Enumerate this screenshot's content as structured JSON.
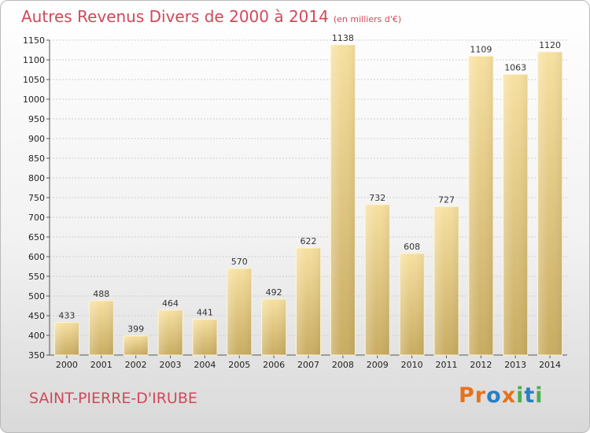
{
  "title": "Autres Revenus Divers de 2000 à 2014",
  "subtitle": "(en milliers d'€)",
  "location": "SAINT-PIERRE-D'IRUBE",
  "logo": {
    "letters": [
      "P",
      "r",
      "o",
      "x",
      "i",
      "t",
      "i"
    ],
    "colors": [
      "#e8711c",
      "#e8711c",
      "#2a7fc1",
      "#e8711c",
      "#4caf50",
      "#2a7fc1",
      "#4caf50"
    ]
  },
  "chart_data": {
    "type": "bar",
    "title": "Autres Revenus Divers de 2000 à 2014",
    "subtitle": "(en milliers d'€)",
    "xlabel": "",
    "ylabel": "",
    "categories": [
      "2000",
      "2001",
      "2002",
      "2003",
      "2004",
      "2005",
      "2006",
      "2007",
      "2008",
      "2009",
      "2010",
      "2011",
      "2012",
      "2013",
      "2014"
    ],
    "values": [
      433,
      488,
      399,
      464,
      441,
      570,
      492,
      622,
      1138,
      732,
      608,
      727,
      1109,
      1063,
      1120
    ],
    "ylim": [
      350,
      1150
    ],
    "yticks": [
      350,
      400,
      450,
      500,
      550,
      600,
      650,
      700,
      750,
      800,
      850,
      900,
      950,
      1000,
      1050,
      1100,
      1150
    ],
    "grid": true,
    "bar_color": "#e3c77c"
  }
}
